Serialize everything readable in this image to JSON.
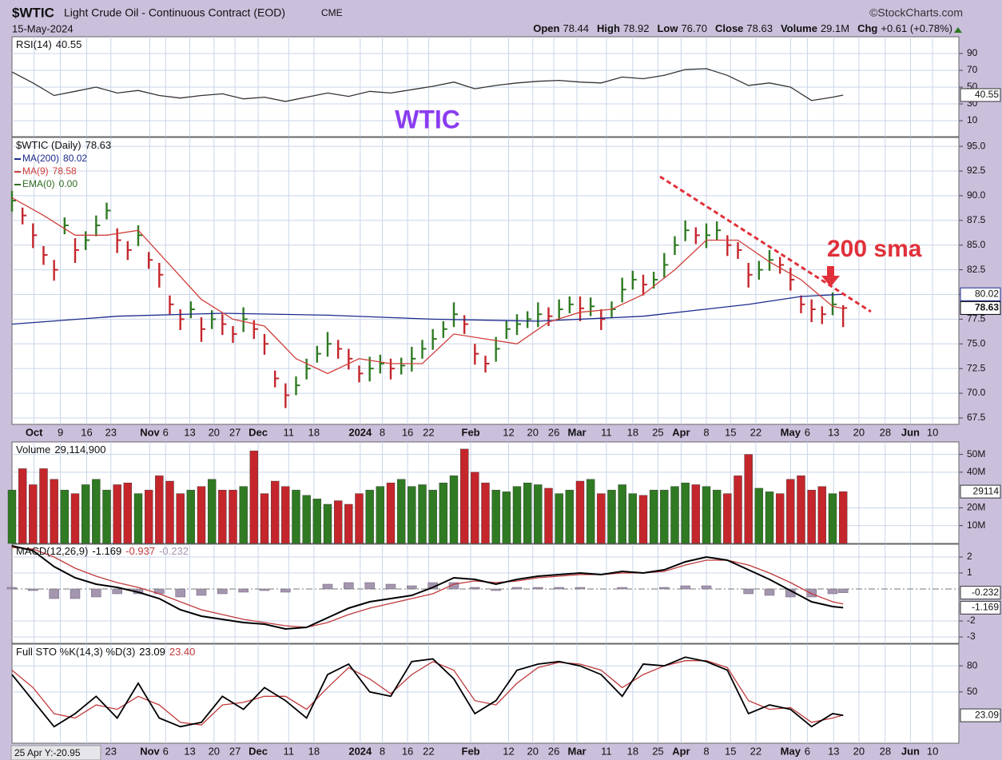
{
  "header": {
    "symbol": "$WTIC",
    "name": "Light Crude Oil - Continuous Contract (EOD)",
    "exchange": "CME",
    "source": "©StockCharts.com",
    "date": "15-May-2024",
    "quote": [
      {
        "label": "Open",
        "value": "78.44"
      },
      {
        "label": "High",
        "value": "78.92"
      },
      {
        "label": "Low",
        "value": "76.70"
      },
      {
        "label": "Close",
        "value": "78.63"
      },
      {
        "label": "Volume",
        "value": "29.1M"
      },
      {
        "label": "Chg",
        "value": "+0.61 (+0.78%)"
      }
    ]
  },
  "annotations": {
    "title": "WTIC",
    "note": "200 sma",
    "cursor": "25 Apr Y:-20.95"
  },
  "x_axis": {
    "xlim": [
      0,
      90
    ],
    "xticks": [
      {
        "value": 2.1,
        "label": "Oct"
      },
      {
        "value": 4.6,
        "label": "9"
      },
      {
        "value": 7.1,
        "label": "16"
      },
      {
        "value": 9.4,
        "label": "23"
      },
      {
        "value": 13.1,
        "label": "Nov"
      },
      {
        "value": 14.6,
        "label": "6"
      },
      {
        "value": 16.9,
        "label": "13"
      },
      {
        "value": 19.2,
        "label": "20"
      },
      {
        "value": 21.2,
        "label": "27"
      },
      {
        "value": 23.4,
        "label": "Dec"
      },
      {
        "value": 26.3,
        "label": "11"
      },
      {
        "value": 28.7,
        "label": "18"
      },
      {
        "value": 33.1,
        "label": "2024"
      },
      {
        "value": 35.2,
        "label": "8"
      },
      {
        "value": 37.6,
        "label": "16"
      },
      {
        "value": 39.6,
        "label": "22"
      },
      {
        "value": 43.6,
        "label": "Feb"
      },
      {
        "value": 47.2,
        "label": "12"
      },
      {
        "value": 49.5,
        "label": "20"
      },
      {
        "value": 51.5,
        "label": "26"
      },
      {
        "value": 53.7,
        "label": "Mar"
      },
      {
        "value": 56.5,
        "label": "11"
      },
      {
        "value": 59.0,
        "label": "18"
      },
      {
        "value": 61.4,
        "label": "25"
      },
      {
        "value": 63.6,
        "label": "Apr"
      },
      {
        "value": 66.0,
        "label": "8"
      },
      {
        "value": 68.3,
        "label": "15"
      },
      {
        "value": 70.7,
        "label": "22"
      },
      {
        "value": 74.0,
        "label": "May"
      },
      {
        "value": 75.6,
        "label": "6"
      },
      {
        "value": 78.1,
        "label": "13"
      },
      {
        "value": 80.5,
        "label": "20"
      },
      {
        "value": 83.0,
        "label": "28"
      },
      {
        "value": 85.4,
        "label": "Jun"
      },
      {
        "value": 87.5,
        "label": "10"
      }
    ]
  },
  "chart_data": [
    {
      "type": "line",
      "name": "RSI(14)",
      "color": "#333333",
      "ylim": [
        -9,
        110
      ],
      "yticks": [
        10,
        30,
        50,
        70,
        90
      ],
      "x": [
        0,
        2,
        4,
        6,
        8,
        10,
        12,
        14,
        16,
        18,
        20,
        22,
        24,
        26,
        28,
        30,
        32,
        34,
        36,
        38,
        40,
        42,
        44,
        46,
        48,
        50,
        52,
        54,
        56,
        58,
        60,
        62,
        64,
        66,
        68,
        70,
        72,
        74,
        76,
        78,
        79
      ],
      "values": [
        68,
        55,
        40,
        45,
        50,
        43,
        46,
        40,
        37,
        40,
        42,
        36,
        38,
        33,
        38,
        43,
        39,
        45,
        43,
        47,
        51,
        56,
        48,
        52,
        55,
        57,
        58,
        56,
        55,
        62,
        60,
        64,
        71,
        72,
        64,
        52,
        55,
        50,
        34,
        38,
        40.55
      ]
    },
    {
      "type": "ohlc",
      "name": "$WTIC (Daily)",
      "up_color": "#2f7a22",
      "down_color": "#c4262c",
      "ylim": [
        66.85,
        95.9
      ],
      "yticks": [
        67.5,
        {
          "value": 70,
          "label": "70.0"
        },
        72.5,
        {
          "value": 75,
          "label": "75.0"
        },
        77.5,
        {
          "value": 80,
          "label": "80.0"
        },
        82.5,
        {
          "value": 85,
          "label": "85.0"
        },
        87.5,
        {
          "value": 90,
          "label": "90.0"
        },
        92.5,
        {
          "value": 95,
          "label": "95.0"
        }
      ],
      "high": [
        90.5,
        88.8,
        87.2,
        84.9,
        83.5,
        87.8,
        85.7,
        86.4,
        88.0,
        89.3,
        86.7,
        85.4,
        87.0,
        84.3,
        83.2,
        79.9,
        78.5,
        79.3,
        77.7,
        78.4,
        78.0,
        76.8,
        78.7,
        77.4,
        76.0,
        72.3,
        71.0,
        71.7,
        73.5,
        74.8,
        76.2,
        75.4,
        74.5,
        72.8,
        73.7,
        73.9,
        73.5,
        73.6,
        74.7,
        75.4,
        76.5,
        77.3,
        79.2,
        77.9,
        75.0,
        73.8,
        75.7,
        77.4,
        78.0,
        78.3,
        79.2,
        78.7,
        79.5,
        79.8,
        79.8,
        79.7,
        78.5,
        79.3,
        81.7,
        82.4,
        82.0,
        82.3,
        84.2,
        85.9,
        87.5,
        86.8,
        87.2,
        87.4,
        86.0,
        85.3,
        83.2,
        83.4,
        84.5,
        83.8,
        82.7,
        79.9,
        79.5,
        78.8,
        80.2,
        78.92
      ],
      "low": [
        88.4,
        87.1,
        84.7,
        83.0,
        81.4,
        86.1,
        83.2,
        84.5,
        85.9,
        87.6,
        84.2,
        83.5,
        84.9,
        82.6,
        80.7,
        78.0,
        76.4,
        77.6,
        75.2,
        76.5,
        75.9,
        75.1,
        76.2,
        75.5,
        73.9,
        70.6,
        68.5,
        69.8,
        71.4,
        73.1,
        73.7,
        73.5,
        72.4,
        71.1,
        71.2,
        72.0,
        71.4,
        71.9,
        72.2,
        73.5,
        74.4,
        75.6,
        76.7,
        76.0,
        72.9,
        72.1,
        73.2,
        75.5,
        75.9,
        76.6,
        76.7,
        76.8,
        77.4,
        78.1,
        77.3,
        77.8,
        76.4,
        77.6,
        79.2,
        80.5,
        79.9,
        80.6,
        81.7,
        84.0,
        85.4,
        85.1,
        84.7,
        85.5,
        83.9,
        83.6,
        80.7,
        81.5,
        82.4,
        82.1,
        80.4,
        78.1,
        77.2,
        77.0,
        77.9,
        76.7
      ],
      "close": [
        89.5,
        88.0,
        86.0,
        84.0,
        82.5,
        87.0,
        84.5,
        85.5,
        87.0,
        88.5,
        85.5,
        84.5,
        86.0,
        83.5,
        82.0,
        79.0,
        77.5,
        78.5,
        76.5,
        77.5,
        77.0,
        76.0,
        77.5,
        76.5,
        75.0,
        71.5,
        69.8,
        70.8,
        72.5,
        74.0,
        75.0,
        74.5,
        73.5,
        72.0,
        72.5,
        73.0,
        72.5,
        72.8,
        73.5,
        74.5,
        75.5,
        76.5,
        78.0,
        77.0,
        74.0,
        73.0,
        74.5,
        76.5,
        77.0,
        77.5,
        78.0,
        77.8,
        78.5,
        79.0,
        78.6,
        78.8,
        77.5,
        78.5,
        80.5,
        81.5,
        81.0,
        81.5,
        83.0,
        85.0,
        86.5,
        86.0,
        86.0,
        86.5,
        85.0,
        84.5,
        82.0,
        82.5,
        83.5,
        83.0,
        81.5,
        79.0,
        78.5,
        78.0,
        79.0,
        78.63
      ],
      "series": [
        {
          "name": "MA(200)",
          "color": "#1c2a8c",
          "x": [
            0,
            10,
            20,
            30,
            40,
            50,
            60,
            70,
            75,
            79
          ],
          "values": [
            77.0,
            77.8,
            78.1,
            77.9,
            77.5,
            77.3,
            77.8,
            79.0,
            79.8,
            80.02
          ]
        },
        {
          "name": "MA(9)",
          "color": "#d0403c",
          "x": [
            0,
            3,
            6,
            9,
            12,
            15,
            18,
            21,
            24,
            27,
            30,
            33,
            36,
            39,
            42,
            45,
            48,
            51,
            54,
            57,
            60,
            63,
            66,
            69,
            72,
            75,
            78,
            79
          ],
          "values": [
            89.8,
            88.0,
            86.0,
            86.0,
            86.5,
            83.0,
            79.5,
            77.5,
            76.8,
            73.5,
            72.0,
            73.5,
            73.0,
            73.0,
            76.0,
            75.5,
            75.0,
            77.2,
            78.2,
            78.5,
            80.0,
            82.5,
            85.5,
            85.5,
            83.3,
            81.5,
            78.8,
            78.58
          ]
        },
        {
          "name": "EMA(0)",
          "color": "#2f6b22",
          "value_label": "0.00"
        }
      ]
    },
    {
      "type": "bar",
      "name": "Volume",
      "value_label": "29,114,900",
      "last_label": "29114",
      "ylim": [
        0,
        57
      ],
      "yticks": [
        {
          "value": 10,
          "label": "10M"
        },
        {
          "value": 20,
          "label": "20M"
        },
        {
          "value": 40,
          "label": "40M"
        },
        {
          "value": 50,
          "label": "50M"
        }
      ],
      "values": [
        30,
        42,
        33,
        42,
        36,
        30,
        28,
        33,
        36,
        30,
        33,
        34,
        28,
        30,
        38,
        35,
        28,
        30,
        32,
        36,
        30,
        30,
        32,
        52,
        28,
        35,
        32,
        30,
        27,
        25,
        22,
        24,
        22,
        28,
        30,
        32,
        34,
        36,
        32,
        33,
        30,
        34,
        38,
        53,
        40,
        34,
        30,
        29,
        32,
        34,
        33,
        31,
        28,
        30,
        35,
        36,
        28,
        30,
        33,
        28,
        27,
        30,
        30,
        32,
        34,
        33,
        32,
        30,
        28,
        38,
        50,
        31,
        29,
        28,
        36,
        38,
        30,
        32,
        28,
        29.1149
      ]
    },
    {
      "type": "macd",
      "name": "MACD(12,26,9)",
      "macd_color": "#000000",
      "signal_color": "#c0393b",
      "histogram_color": "#a596b0",
      "ylim": [
        -3.4,
        2.8
      ],
      "yticks": [
        2,
        1,
        -2,
        -3
      ],
      "x": [
        0,
        2,
        4,
        6,
        8,
        10,
        12,
        14,
        16,
        18,
        20,
        22,
        24,
        26,
        28,
        30,
        32,
        34,
        36,
        38,
        40,
        42,
        44,
        46,
        48,
        50,
        52,
        54,
        56,
        58,
        60,
        62,
        64,
        66,
        68,
        70,
        72,
        74,
        76,
        78,
        79
      ],
      "macd": [
        2.7,
        2.4,
        1.4,
        0.7,
        0.3,
        0.1,
        -0.2,
        -0.6,
        -1.3,
        -1.7,
        -1.9,
        -2.1,
        -2.2,
        -2.5,
        -2.4,
        -1.8,
        -1.2,
        -0.8,
        -0.6,
        -0.4,
        0.1,
        0.7,
        0.6,
        0.3,
        0.6,
        0.8,
        0.9,
        1.0,
        0.9,
        1.1,
        1.0,
        1.2,
        1.7,
        2.0,
        1.8,
        1.2,
        0.6,
        -0.1,
        -0.8,
        -1.1,
        -1.169
      ],
      "signal": [
        2.6,
        2.5,
        2.0,
        1.3,
        0.8,
        0.4,
        0.1,
        -0.3,
        -0.8,
        -1.3,
        -1.6,
        -1.9,
        -2.1,
        -2.3,
        -2.4,
        -2.1,
        -1.6,
        -1.2,
        -0.9,
        -0.6,
        -0.3,
        0.3,
        0.5,
        0.4,
        0.5,
        0.7,
        0.8,
        0.9,
        0.9,
        1.0,
        1.0,
        1.1,
        1.5,
        1.8,
        1.8,
        1.5,
        1.0,
        0.4,
        -0.3,
        -0.8,
        -0.937
      ],
      "histogram": [
        0.1,
        -0.1,
        -0.6,
        -0.6,
        -0.5,
        -0.3,
        -0.3,
        -0.3,
        -0.5,
        -0.4,
        -0.3,
        -0.2,
        -0.1,
        -0.2,
        0.0,
        0.3,
        0.4,
        0.4,
        0.3,
        0.2,
        0.4,
        0.4,
        0.1,
        -0.1,
        0.1,
        0.1,
        0.1,
        0.1,
        0.0,
        0.1,
        0.0,
        0.1,
        0.2,
        0.2,
        0.0,
        -0.3,
        -0.4,
        -0.5,
        -0.5,
        -0.3,
        -0.232
      ]
    },
    {
      "type": "stochastic",
      "name": "Full STO %K(14,3) %D(3)",
      "k_color": "#000000",
      "d_color": "#c0393b",
      "d_last_label": "23.40",
      "ylim": [
        -9,
        105
      ],
      "yticks": [
        80,
        50
      ],
      "x": [
        0,
        2,
        4,
        6,
        8,
        10,
        12,
        14,
        16,
        18,
        20,
        22,
        24,
        26,
        28,
        30,
        32,
        34,
        36,
        38,
        40,
        42,
        44,
        46,
        48,
        50,
        52,
        54,
        56,
        58,
        60,
        62,
        64,
        66,
        68,
        70,
        72,
        74,
        76,
        78,
        79
      ],
      "k": [
        70,
        40,
        10,
        25,
        45,
        20,
        60,
        20,
        10,
        15,
        45,
        30,
        55,
        40,
        20,
        70,
        82,
        50,
        45,
        85,
        88,
        65,
        25,
        40,
        75,
        82,
        85,
        80,
        70,
        45,
        82,
        80,
        90,
        85,
        75,
        25,
        35,
        30,
        10,
        25,
        23.09
      ],
      "d": [
        75,
        55,
        25,
        20,
        35,
        30,
        45,
        35,
        15,
        12,
        35,
        38,
        45,
        45,
        30,
        55,
        78,
        65,
        48,
        70,
        85,
        75,
        40,
        35,
        60,
        78,
        84,
        82,
        75,
        55,
        70,
        80,
        86,
        86,
        78,
        40,
        30,
        32,
        15,
        20,
        23.4
      ]
    }
  ]
}
